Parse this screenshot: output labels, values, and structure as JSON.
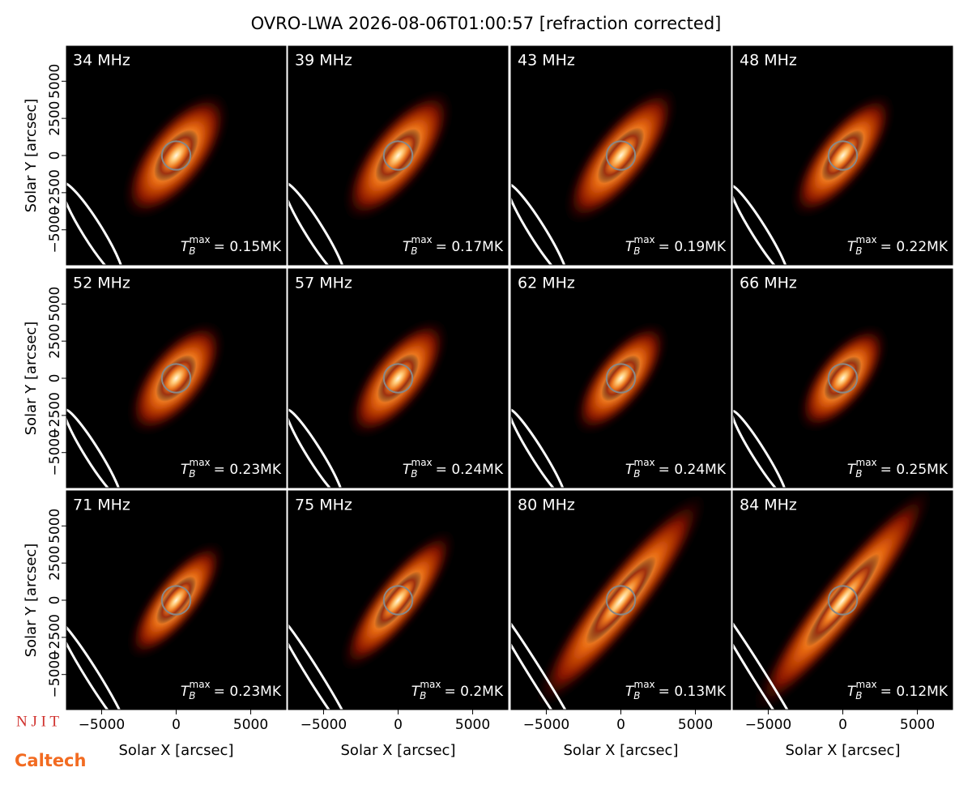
{
  "chart_data": {
    "type": "image-grid",
    "title": "OVRO-LWA 2026-08-06T01:00:57 [refraction corrected]",
    "x_label": "Solar X [arcsec]",
    "y_label": "Solar Y [arcsec]",
    "xlim": [
      -7360,
      7360
    ],
    "ylim": [
      -7360,
      7360
    ],
    "xticks": [
      {
        "value": -5000,
        "label": "−5000"
      },
      0,
      5000
    ],
    "yticks": [
      {
        "value": -5000,
        "label": "−5000"
      },
      {
        "value": -2500,
        "label": "−2500"
      },
      0,
      2500,
      5000
    ],
    "tb_symbol": "T",
    "tb_sub": "B",
    "tb_sup": "max",
    "panels": [
      {
        "label": "34 MHz",
        "tb": "= 0.15MK"
      },
      {
        "label": "39 MHz",
        "tb": "= 0.17MK"
      },
      {
        "label": "43 MHz",
        "tb": "= 0.19MK"
      },
      {
        "label": "48 MHz",
        "tb": "= 0.22MK"
      },
      {
        "label": "52 MHz",
        "tb": "= 0.23MK"
      },
      {
        "label": "57 MHz",
        "tb": "= 0.24MK"
      },
      {
        "label": "62 MHz",
        "tb": "= 0.24MK"
      },
      {
        "label": "66 MHz",
        "tb": "= 0.25MK"
      },
      {
        "label": "71 MHz",
        "tb": "= 0.23MK"
      },
      {
        "label": "75 MHz",
        "tb": "= 0.2MK"
      },
      {
        "label": "80 MHz",
        "tb": "= 0.13MK"
      },
      {
        "label": "84 MHz",
        "tb": "= 0.12MK"
      }
    ],
    "logos": [
      "N J I T",
      "Caltech"
    ]
  }
}
